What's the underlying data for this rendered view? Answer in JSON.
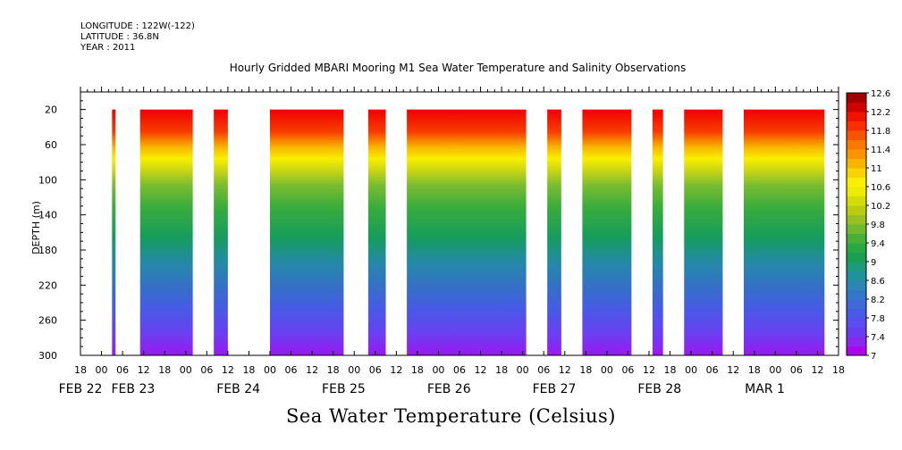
{
  "meta": {
    "longitude": "LONGITUDE : 122W(-122)",
    "latitude": "LATITUDE : 36.8N",
    "year": "YEAR : 2011"
  },
  "chart_data": {
    "type": "heatmap",
    "title": "Hourly Gridded MBARI Mooring M1 Sea Water Temperature and Salinity Observations",
    "colorbar_title": "Sea Water Temperature (Celsius)",
    "ylabel": "DEPTH (m)",
    "y_axis": {
      "reversed": true,
      "ylim": [
        0,
        300
      ],
      "ticks": [
        20,
        60,
        100,
        140,
        180,
        220,
        260,
        300
      ],
      "tick_labels": [
        "20",
        "60",
        "100",
        "140",
        "180",
        "220",
        "260",
        "300"
      ]
    },
    "x_axis": {
      "unit": "hours since 2011-02-21 18:00",
      "xlim": [
        0,
        216
      ],
      "hour_ticks": [
        0,
        6,
        12,
        18,
        24,
        30,
        36,
        42,
        48,
        54,
        60,
        66,
        72,
        78,
        84,
        90,
        96,
        102,
        108,
        114,
        120,
        126,
        132,
        138,
        144,
        150,
        156,
        162,
        168,
        174,
        180,
        186,
        192,
        198,
        204,
        210,
        216
      ],
      "hour_labels": [
        "18",
        "00",
        "06",
        "12",
        "18",
        "00",
        "06",
        "12",
        "18",
        "00",
        "06",
        "12",
        "18",
        "00",
        "06",
        "12",
        "18",
        "00",
        "06",
        "12",
        "18",
        "00",
        "06",
        "12",
        "18",
        "00",
        "06",
        "12",
        "18",
        "00",
        "06",
        "12",
        "18",
        "00",
        "06",
        "12",
        "18"
      ],
      "date_labels": [
        {
          "text": "FEB 22",
          "at": 0
        },
        {
          "text": "FEB 23",
          "at": 15
        },
        {
          "text": "FEB 24",
          "at": 45
        },
        {
          "text": "FEB 25",
          "at": 75
        },
        {
          "text": "FEB 26",
          "at": 105
        },
        {
          "text": "FEB 27",
          "at": 135
        },
        {
          "text": "FEB 28",
          "at": 165
        },
        {
          "text": "MAR  1",
          "at": 195
        }
      ]
    },
    "data_segments": [
      {
        "start": 9,
        "end": 10
      },
      {
        "start": 17,
        "end": 32
      },
      {
        "start": 38,
        "end": 42
      },
      {
        "start": 54,
        "end": 75
      },
      {
        "start": 82,
        "end": 87
      },
      {
        "start": 93,
        "end": 127
      },
      {
        "start": 133,
        "end": 137
      },
      {
        "start": 143,
        "end": 157
      },
      {
        "start": 163,
        "end": 166
      },
      {
        "start": 172,
        "end": 183
      },
      {
        "start": 189,
        "end": 212
      }
    ],
    "colorbar": {
      "levels": [
        7,
        7.2,
        7.4,
        7.6,
        7.8,
        8,
        8.2,
        8.4,
        8.6,
        8.8,
        9,
        9.2,
        9.4,
        9.6,
        9.8,
        10,
        10.2,
        10.4,
        10.6,
        10.8,
        11,
        11.2,
        11.4,
        11.6,
        11.8,
        12,
        12.2,
        12.4,
        12.6
      ],
      "labels": [
        "7",
        "7.4",
        "7.8",
        "8.2",
        "8.6",
        "9",
        "9.4",
        "9.8",
        "10.2",
        "10.6",
        "11",
        "11.4",
        "11.8",
        "12.2",
        "12.6"
      ],
      "colors": [
        "#b000f0",
        "#8a28f0",
        "#6a3cf0",
        "#5a4ef0",
        "#4a5ae8",
        "#3e6ad8",
        "#3278c8",
        "#2a86b4",
        "#20929a",
        "#1c9c7a",
        "#18a050",
        "#28a840",
        "#48b038",
        "#70b830",
        "#98c020",
        "#b8cc10",
        "#d4dc08",
        "#ecec00",
        "#f8f000",
        "#f8d400",
        "#f8b400",
        "#f89400",
        "#f87800",
        "#f85400",
        "#f83000",
        "#f01400",
        "#d00000",
        "#a00000"
      ]
    }
  }
}
